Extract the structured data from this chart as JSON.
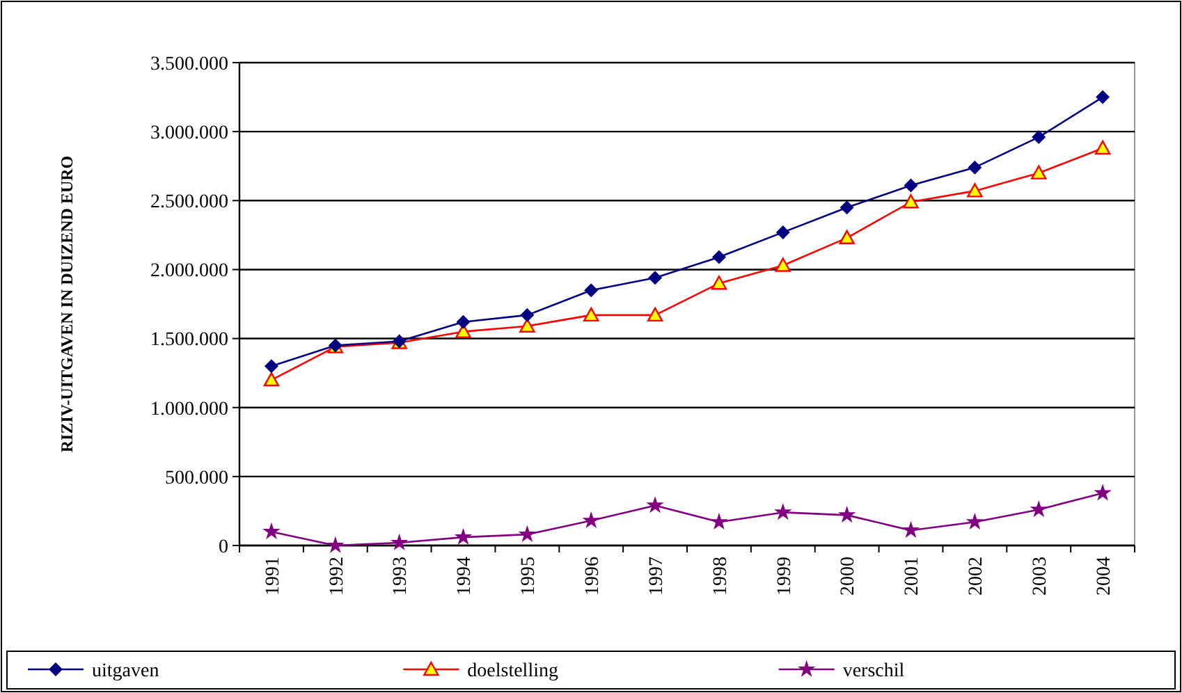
{
  "chart_data": {
    "type": "line",
    "ylabel": "RIZIV-UITGAVEN IN DUIZEND EURO",
    "categories": [
      "1991",
      "1992",
      "1993",
      "1994",
      "1995",
      "1996",
      "1997",
      "1998",
      "1999",
      "2000",
      "2001",
      "2002",
      "2003",
      "2004"
    ],
    "series": [
      {
        "name": "uitgaven",
        "color": "#000080",
        "marker": "diamond",
        "values": [
          1300000,
          1450000,
          1480000,
          1620000,
          1670000,
          1850000,
          1940000,
          2090000,
          2270000,
          2450000,
          2610000,
          2740000,
          2960000,
          3250000
        ]
      },
      {
        "name": "doelstelling",
        "color": "#ff0000",
        "marker": "triangle",
        "values": [
          1200000,
          1440000,
          1470000,
          1550000,
          1590000,
          1670000,
          1670000,
          1900000,
          2030000,
          2230000,
          2490000,
          2570000,
          2700000,
          2880000
        ]
      },
      {
        "name": "verschil",
        "color": "#800080",
        "marker": "star",
        "values": [
          100000,
          0,
          20000,
          60000,
          80000,
          180000,
          290000,
          170000,
          240000,
          220000,
          110000,
          170000,
          260000,
          380000
        ]
      }
    ],
    "ylim": [
      0,
      3500000
    ],
    "yticks": [
      0,
      {
        "value": 500000,
        "label": "500.000"
      },
      {
        "value": 1000000,
        "label": "1.000.000"
      },
      {
        "value": 1500000,
        "label": "1.500.000"
      },
      {
        "value": 2000000,
        "label": "2.000.000"
      },
      {
        "value": 2500000,
        "label": "2.500.000"
      },
      {
        "value": 3000000,
        "label": "3.000.000"
      },
      {
        "value": 3500000,
        "label": "3.500.000"
      }
    ],
    "grid": "y",
    "legend": "bottom",
    "line_style": "solid"
  }
}
